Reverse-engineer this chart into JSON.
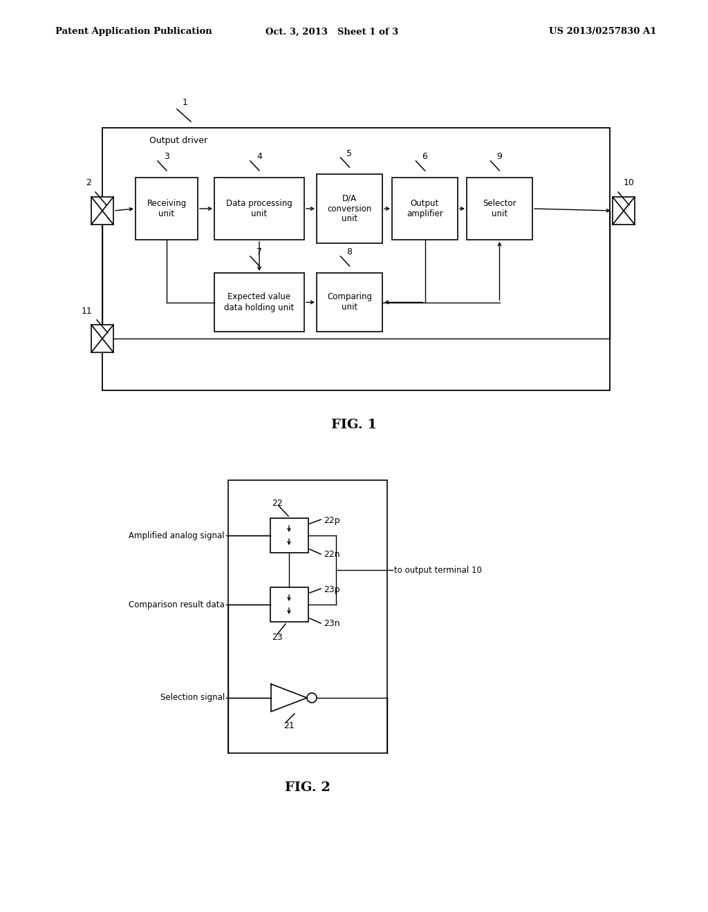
{
  "header_left": "Patent Application Publication",
  "header_center": "Oct. 3, 2013   Sheet 1 of 3",
  "header_right": "US 2013/0257830 A1",
  "bg_color": "#ffffff",
  "line_color": "#000000",
  "text_color": "#000000",
  "fig1_label": "FIG. 1",
  "fig2_label": "FIG. 2"
}
